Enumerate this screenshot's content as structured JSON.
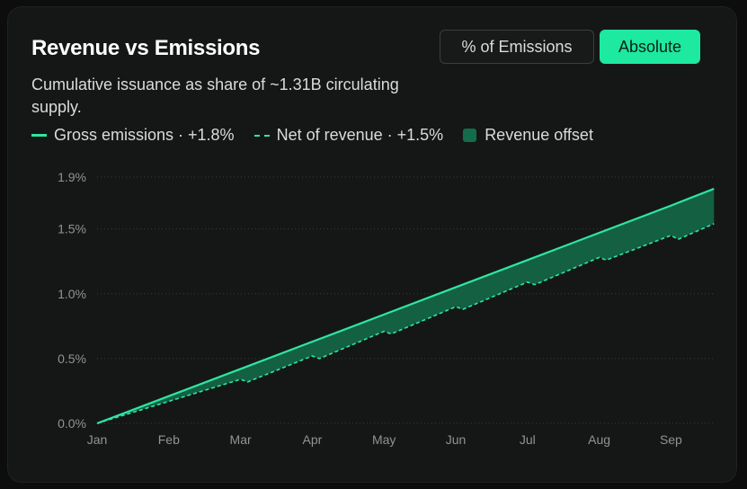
{
  "card": {
    "title": "Revenue vs Emissions",
    "subtitle": "Cumulative issuance as share of ~1.31B circulating supply."
  },
  "toggle": {
    "options": [
      "% of Emissions",
      "Absolute"
    ],
    "selected": "Absolute"
  },
  "legend": {
    "gross": "Gross emissions · +1.8%",
    "net": "Net of revenue · +1.5%",
    "offset": "Revenue offset"
  },
  "colors": {
    "accent": "#1de9a0",
    "line": "#2ee6a3",
    "area": "#136d4b",
    "background": "#151716"
  },
  "chart_data": {
    "type": "area",
    "x_labels": [
      "Jan",
      "Feb",
      "Mar",
      "Apr",
      "May",
      "Jun",
      "Jul",
      "Aug",
      "Sep"
    ],
    "x_extent_months": [
      0,
      8.6
    ],
    "y_ticks": [
      0.0,
      0.5,
      1.0,
      1.5,
      1.9
    ],
    "y_tick_labels": [
      "0.0%",
      "0.5%",
      "1.0%",
      "1.5%",
      "1.9%"
    ],
    "ylim": [
      0,
      1.9
    ],
    "grid": "horizontal dotted",
    "series": [
      {
        "name": "Gross emissions · +1.8%",
        "style": "solid",
        "x": [
          0,
          1,
          2,
          3,
          4,
          5,
          6,
          7,
          8,
          8.6
        ],
        "y": [
          0.0,
          0.21,
          0.42,
          0.63,
          0.84,
          1.05,
          1.26,
          1.47,
          1.68,
          1.81
        ]
      },
      {
        "name": "Net of revenue · +1.5%",
        "style": "dashed",
        "x": [
          0,
          1,
          2,
          2.1,
          3,
          3.1,
          4,
          4.1,
          5,
          5.1,
          6,
          6.1,
          7,
          7.1,
          8,
          8.1,
          8.6
        ],
        "y": [
          0.0,
          0.17,
          0.34,
          0.32,
          0.52,
          0.5,
          0.71,
          0.69,
          0.9,
          0.88,
          1.09,
          1.07,
          1.28,
          1.26,
          1.45,
          1.42,
          1.54
        ]
      }
    ],
    "fill_between": {
      "name": "Revenue offset",
      "upper": "Gross emissions · +1.8%",
      "lower": "Net of revenue · +1.5%"
    }
  }
}
